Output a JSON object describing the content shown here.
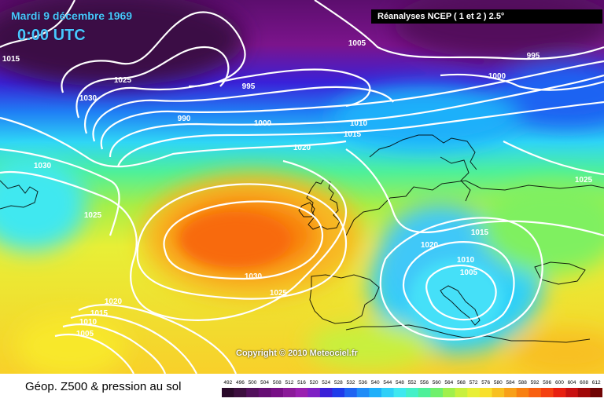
{
  "header": {
    "date": "Mardi 9 décembre 1969",
    "time": "0:00 UTC",
    "source": "Réanalyses NCEP ( 1 et 2 ) 2.5°"
  },
  "copyright": "Copyright © 2010 Meteociel.fr",
  "footer": {
    "map_title": "Géop. Z500 & pression au sol"
  },
  "legend": {
    "values": [
      "492",
      "496",
      "500",
      "504",
      "508",
      "512",
      "516",
      "520",
      "524",
      "528",
      "532",
      "536",
      "540",
      "544",
      "548",
      "552",
      "556",
      "560",
      "564",
      "568",
      "572",
      "576",
      "580",
      "584",
      "588",
      "592",
      "596",
      "600",
      "604",
      "608",
      "612"
    ],
    "colors": [
      "#2a0a2a",
      "#3d0f3f",
      "#52105c",
      "#650e73",
      "#780f86",
      "#8b1a99",
      "#9a1fb0",
      "#7f1fc4",
      "#3a20d8",
      "#1f3bea",
      "#1f64f2",
      "#1f8cf7",
      "#1fb0fa",
      "#2fd0f8",
      "#3fe8f0",
      "#44f0c8",
      "#4ef09a",
      "#6ff06c",
      "#a0f04c",
      "#c8f03e",
      "#e8ef36",
      "#f8e02c",
      "#f8c020",
      "#f8a018",
      "#f88010",
      "#f86010",
      "#f44010",
      "#e82010",
      "#c81010",
      "#a00808",
      "#700404"
    ]
  },
  "isobars": [
    "1015",
    "1025",
    "1030",
    "995",
    "990",
    "1000",
    "1005",
    "1010",
    "1015",
    "1020",
    "995",
    "1000",
    "1025",
    "1030",
    "1025",
    "1030",
    "1025",
    "1020",
    "1015",
    "1010",
    "1005",
    "1020",
    "1015",
    "1010",
    "1005"
  ]
}
